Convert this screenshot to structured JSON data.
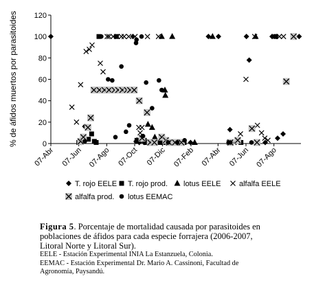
{
  "chart_data": {
    "type": "scatter",
    "ylabel": "% de áfidos muertos por parasitoides",
    "ylim": [
      0,
      120
    ],
    "yticks": [
      0,
      20,
      40,
      60,
      80,
      100,
      120
    ],
    "x_tick_labels": [
      "07-Abr",
      "07-Jun",
      "07-Ago",
      "07-Oct",
      "07-Dic",
      "07-Feb",
      "07-Abr",
      "07-Jun",
      "07-Ago"
    ],
    "x_tick_dates": [
      "2006-04-07",
      "2006-06-07",
      "2006-08-07",
      "2006-10-07",
      "2006-12-07",
      "2007-02-07",
      "2007-04-07",
      "2007-06-07",
      "2007-08-07"
    ],
    "xlim": [
      "2006-04-07",
      "2007-10-05"
    ],
    "legend_position": "bottom",
    "series": [
      {
        "name": "T. rojo EELE",
        "marker": "diamond",
        "points": [
          [
            "2006-04-07",
            100
          ],
          [
            "2006-06-12",
            1
          ],
          [
            "2006-06-20",
            16
          ],
          [
            "2006-10-03",
            100
          ],
          [
            "2006-10-10",
            2
          ],
          [
            "2006-10-17",
            1
          ],
          [
            "2006-10-28",
            1
          ],
          [
            "2006-11-08",
            1
          ],
          [
            "2006-11-21",
            1
          ],
          [
            "2006-12-05",
            1
          ],
          [
            "2006-12-20",
            1
          ],
          [
            "2007-01-05",
            1
          ],
          [
            "2007-01-19",
            1
          ],
          [
            "2007-02-06",
            1
          ],
          [
            "2007-03-17",
            100
          ],
          [
            "2007-04-08",
            100
          ],
          [
            "2007-05-03",
            13
          ],
          [
            "2007-05-07",
            1
          ],
          [
            "2007-06-08",
            100
          ],
          [
            "2007-06-14",
            78
          ],
          [
            "2007-06-27",
            1
          ],
          [
            "2007-07-19",
            1
          ],
          [
            "2007-08-03",
            100
          ],
          [
            "2007-08-15",
            5
          ],
          [
            "2007-08-27",
            9
          ],
          [
            "2007-09-21",
            100
          ],
          [
            "2007-10-01",
            100
          ]
        ]
      },
      {
        "name": "T. rojo prod.",
        "marker": "square",
        "points": [
          [
            "2006-06-07",
            1
          ],
          [
            "2006-06-28",
            4
          ],
          [
            "2006-07-05",
            9
          ],
          [
            "2006-07-11",
            2
          ],
          [
            "2006-07-15",
            1
          ],
          [
            "2006-07-21",
            100
          ],
          [
            "2006-08-28",
            100
          ],
          [
            "2006-10-12",
            3
          ],
          [
            "2006-10-28",
            3
          ],
          [
            "2006-11-05",
            1
          ],
          [
            "2006-11-10",
            1
          ],
          [
            "2006-12-01",
            1
          ],
          [
            "2006-12-14",
            1
          ],
          [
            "2007-01-02",
            1
          ],
          [
            "2007-01-23",
            1
          ],
          [
            "2007-05-27",
            1
          ],
          [
            "2007-08-11",
            100
          ]
        ]
      },
      {
        "name": "lotus EELE",
        "marker": "triangle",
        "points": [
          [
            "2006-10-12",
            3
          ],
          [
            "2006-11-01",
            1
          ],
          [
            "2006-11-05",
            18
          ],
          [
            "2006-11-14",
            15
          ],
          [
            "2006-11-20",
            6
          ],
          [
            "2006-12-05",
            100
          ],
          [
            "2006-12-12",
            50
          ],
          [
            "2006-12-13",
            45
          ],
          [
            "2006-12-28",
            100
          ],
          [
            "2007-02-15",
            1
          ],
          [
            "2007-03-26",
            100
          ],
          [
            "2007-06-28",
            100
          ]
        ]
      },
      {
        "name": "alfalfa EELE",
        "marker": "x",
        "points": [
          [
            "2006-05-23",
            34
          ],
          [
            "2006-06-02",
            20
          ],
          [
            "2006-06-11",
            55
          ],
          [
            "2006-06-23",
            86
          ],
          [
            "2006-06-30",
            88
          ],
          [
            "2006-07-06",
            92
          ],
          [
            "2006-07-24",
            75
          ],
          [
            "2006-07-30",
            67
          ],
          [
            "2006-08-08",
            100
          ],
          [
            "2006-08-12",
            100
          ],
          [
            "2006-08-21",
            100
          ],
          [
            "2006-08-30",
            100
          ],
          [
            "2006-09-08",
            100
          ],
          [
            "2006-09-14",
            100
          ],
          [
            "2006-09-24",
            100
          ],
          [
            "2006-10-08",
            100
          ],
          [
            "2006-10-16",
            15
          ],
          [
            "2006-10-19",
            10
          ],
          [
            "2006-10-23",
            15
          ],
          [
            "2006-11-04",
            100
          ],
          [
            "2006-11-28",
            100
          ],
          [
            "2006-12-07",
            5
          ],
          [
            "2007-05-01",
            1
          ],
          [
            "2007-05-12",
            1
          ],
          [
            "2007-05-18",
            3
          ],
          [
            "2007-05-26",
            9
          ],
          [
            "2007-06-07",
            60
          ],
          [
            "2007-06-26",
            100
          ],
          [
            "2007-07-02",
            17
          ],
          [
            "2007-07-11",
            10
          ],
          [
            "2007-07-18",
            5
          ],
          [
            "2007-07-25",
            3
          ],
          [
            "2007-08-08",
            100
          ],
          [
            "2007-08-19",
            100
          ],
          [
            "2007-08-28",
            100
          ]
        ]
      },
      {
        "name": "alfalfa prod.",
        "marker": "boxed-x",
        "points": [
          [
            "2006-06-11",
            2
          ],
          [
            "2006-06-17",
            6
          ],
          [
            "2006-06-27",
            15
          ],
          [
            "2006-07-03",
            24
          ],
          [
            "2006-07-10",
            50
          ],
          [
            "2006-07-22",
            50
          ],
          [
            "2006-08-02",
            50
          ],
          [
            "2006-08-12",
            50
          ],
          [
            "2006-08-24",
            50
          ],
          [
            "2006-09-01",
            50
          ],
          [
            "2006-09-10",
            50
          ],
          [
            "2006-09-20",
            50
          ],
          [
            "2006-09-27",
            50
          ],
          [
            "2006-10-06",
            50
          ],
          [
            "2006-10-17",
            40
          ],
          [
            "2006-10-23",
            5
          ],
          [
            "2006-11-03",
            29
          ],
          [
            "2006-11-10",
            1
          ],
          [
            "2006-11-19",
            1
          ],
          [
            "2006-12-05",
            6
          ],
          [
            "2006-12-14",
            3
          ],
          [
            "2006-12-21",
            1
          ],
          [
            "2007-01-03",
            1
          ],
          [
            "2007-01-17",
            1
          ],
          [
            "2007-05-04",
            1
          ],
          [
            "2007-05-20",
            3
          ],
          [
            "2007-06-20",
            14
          ],
          [
            "2007-07-01",
            1
          ],
          [
            "2007-09-03",
            58
          ],
          [
            "2007-09-19",
            100
          ]
        ]
      },
      {
        "name": "lotus EEMAC",
        "marker": "circle",
        "points": [
          [
            "2006-06-20",
            2
          ],
          [
            "2006-07-26",
            100
          ],
          [
            "2006-08-10",
            60
          ],
          [
            "2006-08-19",
            59
          ],
          [
            "2006-08-26",
            6
          ],
          [
            "2006-09-08",
            72
          ],
          [
            "2006-09-18",
            11
          ],
          [
            "2006-09-25",
            17
          ],
          [
            "2006-10-10",
            94
          ],
          [
            "2006-10-11",
            97
          ],
          [
            "2006-10-22",
            100
          ],
          [
            "2006-10-25",
            7
          ],
          [
            "2006-11-01",
            57
          ],
          [
            "2006-11-14",
            33
          ],
          [
            "2006-11-29",
            59
          ],
          [
            "2006-12-05",
            50
          ],
          [
            "2006-12-19",
            1
          ],
          [
            "2007-01-08",
            1
          ],
          [
            "2007-01-24",
            3
          ],
          [
            "2007-04-30",
            1
          ],
          [
            "2007-05-04",
            1
          ],
          [
            "2007-06-19",
            1
          ]
        ]
      }
    ]
  },
  "caption": {
    "label": "Figura 5",
    "text": ". Porcentaje de mortalidad causada por parasitoides en poblaciones de áfidos para cada especie forrajera (2006-2007, Litoral Norte y Litoral Sur).",
    "note1": "EELE - Estación Experimental INIA La Estanzuela, Colonia.",
    "note2": "EEMAC - Estación Experimental Dr. Mario A. Cassinoni, Facultad de Agronomía, Paysandú."
  }
}
